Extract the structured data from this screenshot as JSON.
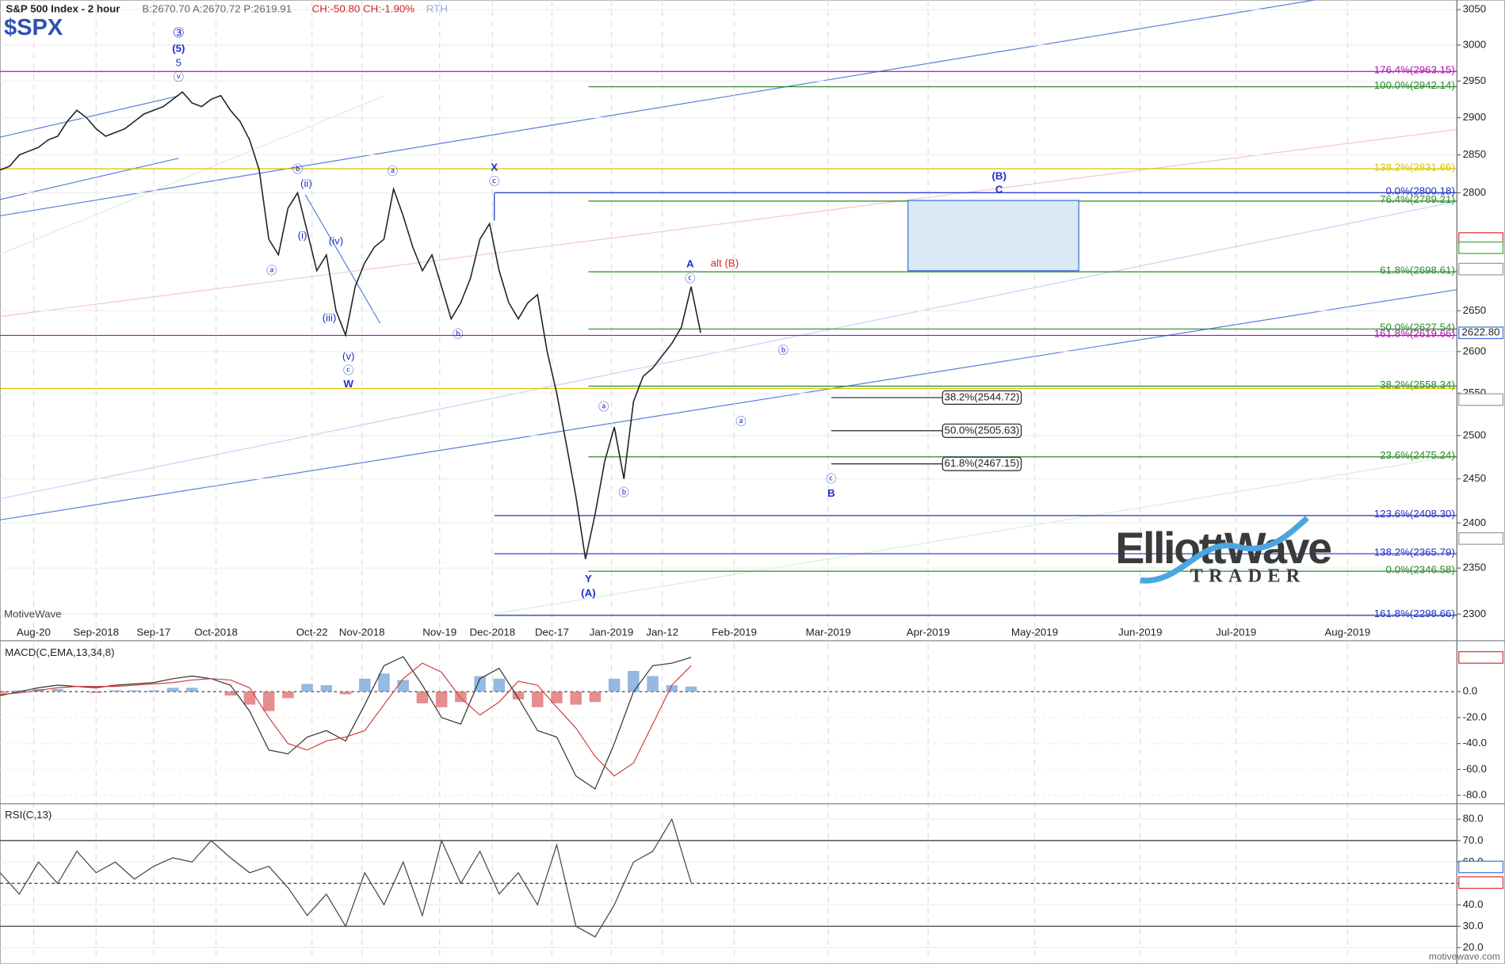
{
  "header": {
    "title": "S&P 500 Index - 2 hour",
    "quote": "B:2670.70 A:2670.72 P:2619.91",
    "change": "CH:-50.80 CH:-1.90%",
    "session": "RTH",
    "symbol": "$SPX",
    "watermark": "MotiveWave",
    "footer": "motivewave.com",
    "logo_main": "ElliottWave",
    "logo_sub": "TRADER"
  },
  "chart_data": [
    {
      "type": "line",
      "log_scale": true,
      "ylim": [
        2290,
        3061
      ],
      "yticks": [
        3050,
        3000,
        2950,
        2900,
        2850,
        2800,
        2650,
        2600,
        2550,
        2500,
        2450,
        2400,
        2350,
        2300
      ],
      "x_labels": [
        "Aug-20",
        "Sep-2018",
        "Sep-17",
        "Oct-2018",
        "Oct-22",
        "Nov-2018",
        "Nov-19",
        "Dec-2018",
        "Dec-17",
        "Jan-2019",
        "Jan-12",
        "Feb-2019",
        "Mar-2019",
        "Apr-2019",
        "May-2019",
        "Jun-2019",
        "Jul-2019",
        "Aug-2019"
      ],
      "series": [
        {
          "name": "$SPX",
          "color": "#222222",
          "values": [
            2830,
            2835,
            2850,
            2855,
            2860,
            2870,
            2875,
            2895,
            2910,
            2900,
            2885,
            2875,
            2880,
            2885,
            2895,
            2905,
            2910,
            2915,
            2925,
            2935,
            2920,
            2915,
            2925,
            2930,
            2910,
            2895,
            2870,
            2830,
            2740,
            2720,
            2780,
            2800,
            2750,
            2700,
            2720,
            2650,
            2620,
            2680,
            2710,
            2730,
            2740,
            2805,
            2770,
            2730,
            2700,
            2720,
            2680,
            2640,
            2660,
            2690,
            2740,
            2760,
            2700,
            2660,
            2640,
            2660,
            2670,
            2600,
            2550,
            2490,
            2430,
            2360,
            2410,
            2470,
            2510,
            2450,
            2540,
            2570,
            2580,
            2595,
            2610,
            2630,
            2680,
            2622.8
          ]
        }
      ],
      "levels": [
        {
          "value": 2963.15,
          "label": "176.4%(2963.15)",
          "color": "#b010b0"
        },
        {
          "value": 2942.14,
          "label": "100.0%(2942.14)",
          "color": "#2a8a2a"
        },
        {
          "value": 2831.66,
          "label": "138.2%(2831.66)",
          "color": "#d8c400"
        },
        {
          "value": 2800.18,
          "label": "0.0%(2800.18)",
          "color": "#2030c8"
        },
        {
          "value": 2789.21,
          "label": "76.4%(2789.21)",
          "color": "#2a8a2a"
        },
        {
          "value": 2698.61,
          "label": "61.8%(2698.61)",
          "color": "#2a8a2a"
        },
        {
          "value": 2627.54,
          "label": "50.0%(2627.54)",
          "color": "#2a8a2a"
        },
        {
          "value": 2619.66,
          "label": "161.8%(2619.66)",
          "color": "#b010b0"
        },
        {
          "value": 2558.34,
          "label": "38.2%(2558.34)",
          "color": "#2a8a2a"
        },
        {
          "value": 2475.24,
          "label": "23.6%(2475.24)",
          "color": "#2a8a2a"
        },
        {
          "value": 2408.3,
          "label": "123.6%(2408.30)",
          "color": "#2030c8"
        },
        {
          "value": 2365.79,
          "label": "138.2%(2365.79)",
          "color": "#2030c8"
        },
        {
          "value": 2346.58,
          "label": "0.0%(2346.58)",
          "color": "#2a8a2a"
        },
        {
          "value": 2298.66,
          "label": "161.8%(2298.66)",
          "color": "#2030c8"
        }
      ],
      "boxed_levels": [
        {
          "value": 2544.72,
          "label": "38.2%(2544.72)"
        },
        {
          "value": 2505.63,
          "label": "50.0%(2505.63)"
        },
        {
          "value": 2467.15,
          "label": "61.8%(2467.15)"
        }
      ],
      "target_zone": {
        "high": 2790,
        "low": 2700,
        "color": "#3a6fd8"
      },
      "price_tags": [
        {
          "value": 2740.92,
          "color": "#e03030"
        },
        {
          "value": 2729.06,
          "color": "#3aa83a"
        },
        {
          "value": 2702.07,
          "color": "#999999"
        },
        {
          "value": 2622.8,
          "label": "2622.80",
          "color": "#3a6fd8"
        },
        {
          "value": 2542.36,
          "color": "#999999"
        },
        {
          "value": 2382.66,
          "color": "#999999"
        }
      ],
      "annotations": [
        "③",
        "(5)",
        "5",
        "ⓥ",
        "ⓑ",
        "(ii)",
        "(i)",
        "(iv)",
        "(iii)",
        "(v)",
        "ⓒ",
        "W",
        "ⓐ",
        "ⓐ",
        "ⓑ",
        "X",
        "ⓒ",
        "A",
        "ⓒ",
        "alt (B)",
        "(B)",
        "C",
        "ⓑ",
        "ⓐ",
        "ⓐ",
        "ⓑ",
        "Y",
        "(A)",
        "ⓒ",
        "B"
      ]
    },
    {
      "type": "macd",
      "title": "MACD(C,EMA,13,34,8)",
      "ylim": [
        -85,
        36.3
      ],
      "yticks": [
        {
          "value": 0,
          "label": "0.0"
        },
        {
          "value": -20,
          "label": "-20.0"
        },
        {
          "value": -40,
          "label": "-40.0"
        },
        {
          "value": -60,
          "label": "-60.0"
        },
        {
          "value": -80,
          "label": "-80.0"
        }
      ],
      "series": [
        {
          "name": "MACD",
          "color": "#333333",
          "values": [
            -3,
            0,
            3,
            5,
            4,
            3,
            5,
            6,
            7,
            10,
            12,
            10,
            5,
            -15,
            -45,
            -48,
            -35,
            -30,
            -38,
            -10,
            20,
            27,
            5,
            -20,
            -25,
            10,
            18,
            -5,
            -30,
            -35,
            -65,
            -75,
            -40,
            0,
            20,
            22,
            26.4
          ]
        },
        {
          "name": "Signal",
          "color": "#d04040",
          "values": [
            -2,
            -1,
            1,
            3,
            4,
            4,
            4,
            5,
            6,
            7,
            9,
            10,
            9,
            3,
            -20,
            -40,
            -45,
            -38,
            -35,
            -30,
            -10,
            10,
            22,
            15,
            -5,
            -18,
            -8,
            8,
            5,
            -12,
            -28,
            -50,
            -65,
            -55,
            -25,
            5,
            20
          ]
        }
      ],
      "histogram": {
        "up_color": "#7aa7d8",
        "down_color": "#e07070",
        "values": [
          -1,
          1,
          2,
          2,
          0,
          -1,
          1,
          1,
          1,
          3,
          3,
          0,
          -3,
          -10,
          -15,
          -5,
          6,
          5,
          -2,
          10,
          14,
          9,
          -9,
          -12,
          -8,
          12,
          10,
          -6,
          -12,
          -9,
          -10,
          -8,
          10,
          16,
          12,
          5,
          4
        ]
      },
      "tag": {
        "value": 26.4,
        "color": "#e03030"
      }
    },
    {
      "type": "rsi",
      "title": "RSI(C,13)",
      "ylim": [
        13.7,
        86.3
      ],
      "yticks": [
        {
          "value": 80,
          "label": "80.0"
        },
        {
          "value": 70,
          "label": "70.0"
        },
        {
          "value": 60,
          "label": "60.0"
        },
        {
          "value": 50,
          "label": "50.0"
        },
        {
          "value": 40,
          "label": "40.0"
        },
        {
          "value": 30,
          "label": "30.0"
        },
        {
          "value": 20,
          "label": "20.0"
        }
      ],
      "bands": [
        70,
        50,
        30
      ],
      "series": [
        {
          "name": "RSI",
          "color": "#444444",
          "values": [
            55,
            45,
            60,
            50,
            65,
            55,
            60,
            52,
            58,
            62,
            60,
            70,
            62,
            55,
            58,
            48,
            35,
            45,
            30,
            55,
            40,
            60,
            35,
            70,
            50,
            65,
            45,
            55,
            40,
            68,
            30,
            25,
            40,
            60,
            65,
            80,
            50.4
          ]
        }
      ],
      "tags": [
        {
          "value": 57.7,
          "color": "#3a6fd8"
        },
        {
          "value": 50.4,
          "color": "#e03030"
        }
      ]
    }
  ]
}
